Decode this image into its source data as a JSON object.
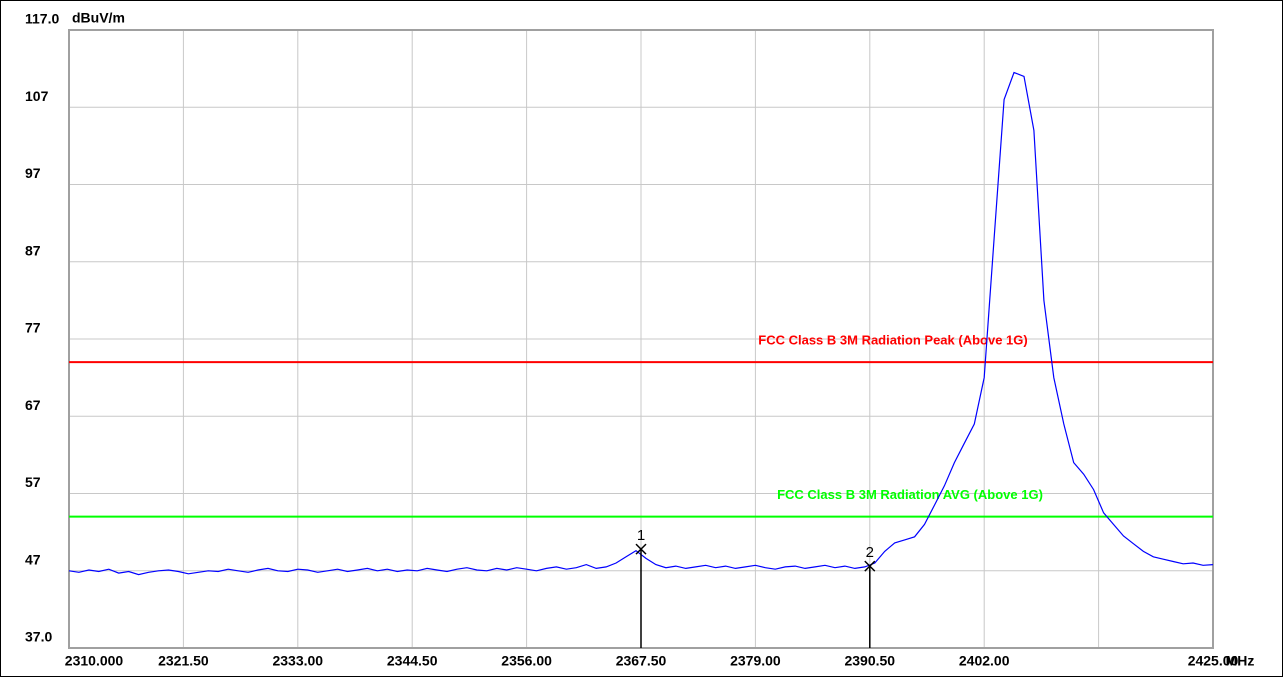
{
  "chart_data": {
    "type": "line",
    "y_unit": "dBuV/m",
    "x_unit": "MHz",
    "xlim": [
      2310,
      2425
    ],
    "ylim": [
      37,
      117
    ],
    "xticks": [
      {
        "value": 2310,
        "label": "2310.000"
      },
      {
        "value": 2321.5,
        "label": "2321.50"
      },
      {
        "value": 2333,
        "label": "2333.00"
      },
      {
        "value": 2344.5,
        "label": "2344.50"
      },
      {
        "value": 2356,
        "label": "2356.00"
      },
      {
        "value": 2367.5,
        "label": "2367.50"
      },
      {
        "value": 2379,
        "label": "2379.00"
      },
      {
        "value": 2390.5,
        "label": "2390.50"
      },
      {
        "value": 2402,
        "label": "2402.00"
      },
      {
        "value": 2425,
        "label": "2425.00"
      }
    ],
    "xgrid": [
      2310,
      2321.5,
      2333,
      2344.5,
      2356,
      2367.5,
      2379,
      2390.5,
      2402,
      2413.5,
      2425
    ],
    "yticks": [
      {
        "value": 37,
        "label": "37.0"
      },
      47,
      57,
      67,
      77,
      87,
      97,
      107,
      {
        "value": 117,
        "label": "117.0"
      }
    ],
    "grid": true,
    "series": [
      {
        "color": "#0000ff",
        "x": [
          2310,
          2311,
          2312,
          2313,
          2314,
          2315,
          2316,
          2317,
          2318,
          2319,
          2320,
          2321,
          2322,
          2323,
          2324,
          2325,
          2326,
          2327,
          2328,
          2329,
          2330,
          2331,
          2332,
          2333,
          2334,
          2335,
          2336,
          2337,
          2338,
          2339,
          2340,
          2341,
          2342,
          2343,
          2344,
          2345,
          2346,
          2347,
          2348,
          2349,
          2350,
          2351,
          2352,
          2353,
          2354,
          2355,
          2356,
          2357,
          2358,
          2359,
          2360,
          2361,
          2362,
          2363,
          2364,
          2365,
          2366,
          2367,
          2368,
          2369,
          2370,
          2371,
          2372,
          2373,
          2374,
          2375,
          2376,
          2377,
          2378,
          2379,
          2380,
          2381,
          2382,
          2383,
          2384,
          2385,
          2386,
          2387,
          2388,
          2389,
          2390,
          2391,
          2392,
          2393,
          2394,
          2395,
          2396,
          2397,
          2398,
          2399,
          2400,
          2401,
          2402,
          2403,
          2404,
          2405,
          2406,
          2407,
          2408,
          2409,
          2410,
          2411,
          2412,
          2413,
          2414,
          2415,
          2416,
          2417,
          2418,
          2419,
          2420,
          2421,
          2422,
          2423,
          2424,
          2425
        ],
        "values": [
          47.0,
          46.8,
          47.1,
          46.9,
          47.2,
          46.7,
          46.9,
          46.5,
          46.8,
          47.0,
          47.1,
          46.9,
          46.6,
          46.8,
          47.0,
          46.9,
          47.2,
          47.0,
          46.8,
          47.1,
          47.3,
          47.0,
          46.9,
          47.2,
          47.1,
          46.8,
          47.0,
          47.2,
          46.9,
          47.1,
          47.3,
          47.0,
          47.2,
          46.9,
          47.1,
          47.0,
          47.3,
          47.1,
          46.9,
          47.2,
          47.4,
          47.1,
          47.0,
          47.3,
          47.1,
          47.4,
          47.2,
          47.0,
          47.3,
          47.5,
          47.2,
          47.4,
          47.8,
          47.3,
          47.5,
          48.0,
          48.8,
          49.6,
          48.6,
          47.8,
          47.4,
          47.6,
          47.3,
          47.5,
          47.7,
          47.4,
          47.6,
          47.3,
          47.5,
          47.7,
          47.4,
          47.2,
          47.5,
          47.6,
          47.3,
          47.5,
          47.7,
          47.4,
          47.6,
          47.3,
          47.5,
          48.0,
          49.5,
          50.6,
          51.0,
          51.4,
          53.0,
          55.5,
          58.0,
          61.0,
          63.5,
          66.0,
          72.0,
          90.0,
          108.0,
          111.5,
          111.0,
          104.0,
          82.0,
          72.0,
          66.0,
          61.0,
          59.5,
          57.5,
          54.5,
          53.0,
          51.5,
          50.5,
          49.5,
          48.8,
          48.5,
          48.2,
          47.9,
          48.0,
          47.7,
          47.8
        ]
      }
    ],
    "limit_lines": [
      {
        "name": "FCC Class B 3M Radiation Peak (Above 1G)",
        "value": 74,
        "color": "#ff0000"
      },
      {
        "name": "FCC Class B 3M Radiation AVG (Above 1G)",
        "value": 54,
        "color": "#00ff00"
      }
    ],
    "markers": [
      {
        "label": "1",
        "x": 2367.5,
        "value": 49.8
      },
      {
        "label": "2",
        "x": 2390.5,
        "value": 47.6
      }
    ]
  }
}
